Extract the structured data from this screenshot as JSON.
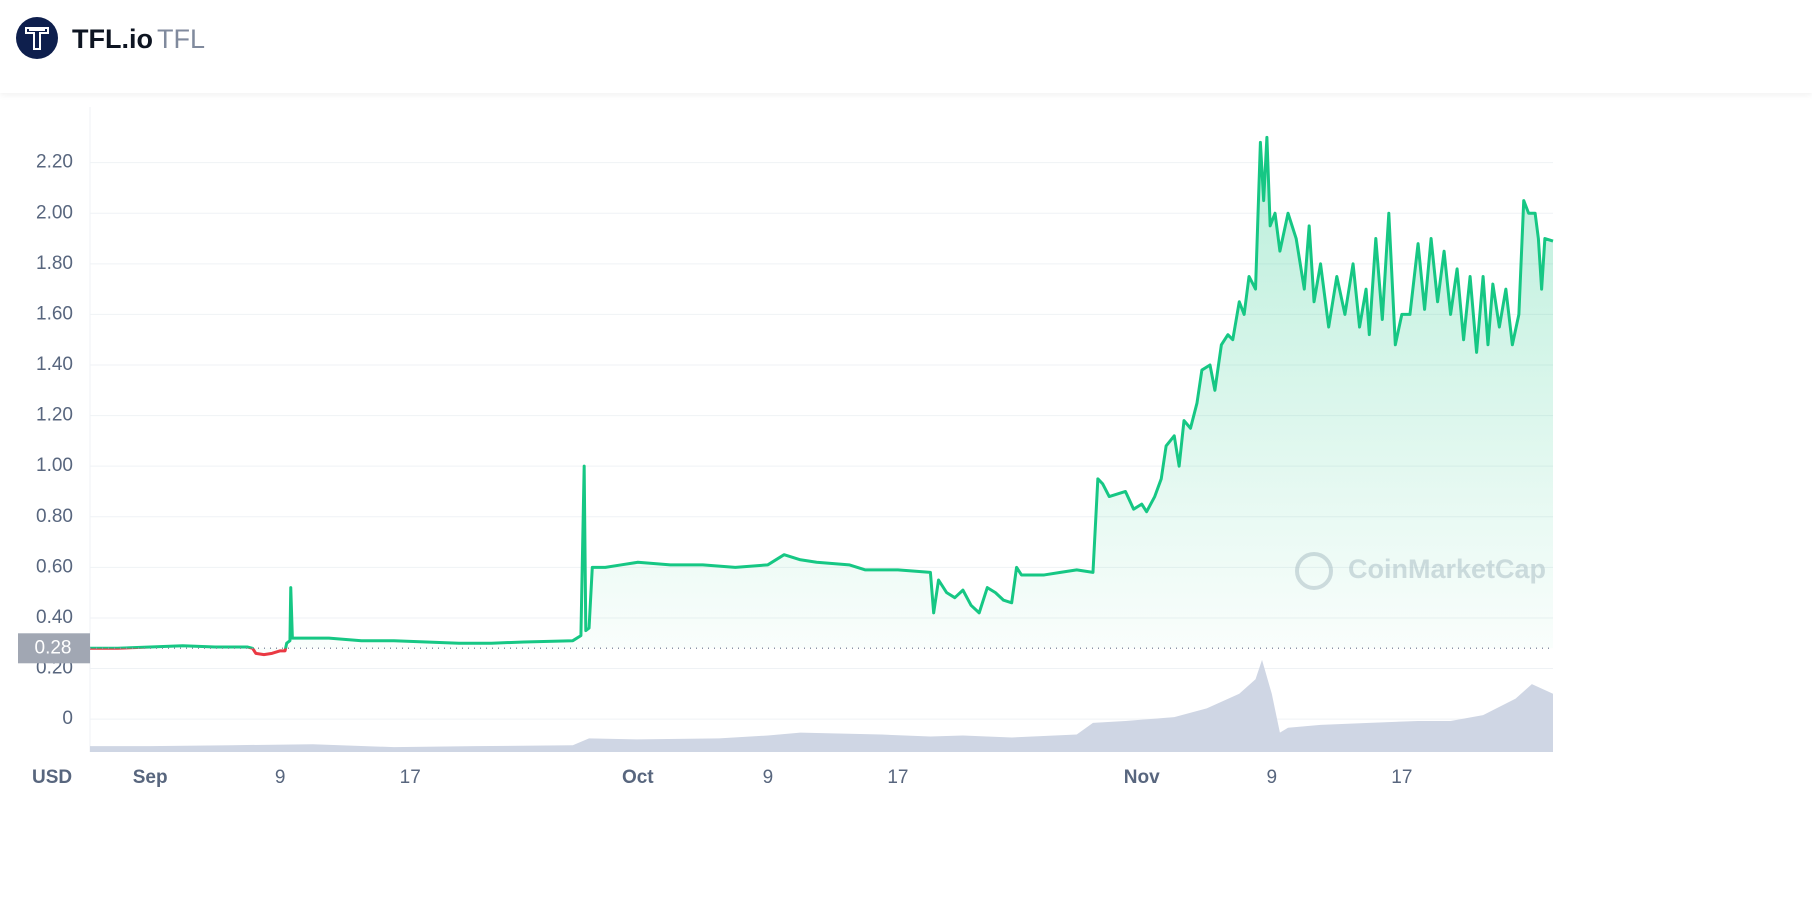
{
  "header": {
    "name": "TFL.io",
    "symbol": "TFL"
  },
  "chart_data": {
    "type": "line",
    "currency": "USD",
    "watermark": "CoinMarketCap",
    "current_price": 0.28,
    "x": [
      -3.7,
      -2,
      0,
      2,
      4,
      6,
      6.3,
      6.5,
      7,
      7.5,
      8,
      8.3,
      8.4,
      8.6,
      8.65,
      8.75,
      9,
      11,
      13,
      15,
      17,
      19,
      21,
      23,
      26,
      26.5,
      26.7,
      26.8,
      27,
      27.2,
      28,
      29,
      30,
      32,
      34,
      36,
      38,
      39,
      40,
      41,
      43,
      44,
      46,
      48,
      48.2,
      48.5,
      49,
      49.5,
      50,
      50.5,
      51,
      51.5,
      52,
      52.5,
      53,
      53.3,
      53.6,
      55,
      56,
      57,
      58,
      58.3,
      58.6,
      59,
      60,
      60.5,
      61,
      61.3,
      61.8,
      62.2,
      62.5,
      63,
      63.3,
      63.6,
      64,
      64.4,
      64.7,
      65.2,
      65.5,
      65.9,
      66.3,
      66.6,
      67,
      67.3,
      67.6,
      68,
      68.3,
      68.5,
      68.7,
      68.9,
      69.2,
      69.5,
      70,
      70.5,
      71,
      71.3,
      71.6,
      72,
      72.5,
      73,
      73.5,
      74,
      74.4,
      74.8,
      75,
      75.4,
      75.8,
      76.2,
      76.6,
      77,
      77.5,
      78,
      78.4,
      78.8,
      79.2,
      79.6,
      80,
      80.4,
      80.8,
      81.2,
      81.6,
      82,
      82.3,
      82.6,
      83,
      83.4,
      83.8,
      84.2,
      84.5,
      84.8,
      85.2,
      85.4,
      85.6,
      85.8,
      86.3
    ],
    "series": [
      {
        "color": "#16c784",
        "down_color": "#ea3943",
        "values": [
          0.28,
          0.28,
          0.285,
          0.29,
          0.285,
          0.285,
          0.28,
          0.26,
          0.255,
          0.26,
          0.27,
          0.27,
          0.3,
          0.31,
          0.52,
          0.32,
          0.32,
          0.32,
          0.31,
          0.31,
          0.305,
          0.3,
          0.3,
          0.305,
          0.31,
          0.33,
          1.0,
          0.35,
          0.36,
          0.6,
          0.6,
          0.61,
          0.62,
          0.61,
          0.61,
          0.6,
          0.61,
          0.65,
          0.63,
          0.62,
          0.61,
          0.59,
          0.59,
          0.58,
          0.42,
          0.55,
          0.5,
          0.48,
          0.51,
          0.45,
          0.42,
          0.52,
          0.5,
          0.47,
          0.46,
          0.6,
          0.57,
          0.57,
          0.58,
          0.59,
          0.58,
          0.95,
          0.93,
          0.88,
          0.9,
          0.83,
          0.85,
          0.82,
          0.88,
          0.95,
          1.08,
          1.12,
          1.0,
          1.18,
          1.15,
          1.25,
          1.38,
          1.4,
          1.3,
          1.48,
          1.52,
          1.5,
          1.65,
          1.6,
          1.75,
          1.7,
          2.28,
          2.05,
          2.3,
          1.95,
          2.0,
          1.85,
          2.0,
          1.9,
          1.7,
          1.95,
          1.65,
          1.8,
          1.55,
          1.75,
          1.6,
          1.8,
          1.55,
          1.7,
          1.52,
          1.9,
          1.58,
          2.0,
          1.48,
          1.6,
          1.6,
          1.88,
          1.62,
          1.9,
          1.65,
          1.85,
          1.6,
          1.78,
          1.5,
          1.75,
          1.45,
          1.75,
          1.48,
          1.72,
          1.55,
          1.7,
          1.48,
          1.6,
          2.05,
          2.0,
          2.0,
          1.9,
          1.7,
          1.9,
          1.89
        ]
      }
    ],
    "volume": {
      "color": "#cfd6e4",
      "y2lim": [
        0,
        100
      ],
      "x": [
        -3.7,
        0,
        5,
        10,
        15,
        20,
        26,
        27,
        30,
        35,
        38,
        40,
        45,
        48,
        50,
        53,
        57,
        58,
        60,
        63,
        65,
        67,
        68,
        68.4,
        69,
        69.5,
        70,
        72,
        75,
        78,
        80,
        82,
        84,
        85,
        86.3
      ],
      "values": [
        6,
        6,
        7,
        8,
        5,
        6,
        7,
        14,
        13,
        14,
        17,
        20,
        18,
        16,
        17,
        15,
        18,
        30,
        32,
        36,
        45,
        60,
        75,
        95,
        60,
        20,
        25,
        28,
        30,
        32,
        32,
        38,
        55,
        70,
        60
      ]
    },
    "xlim": [
      -3.7,
      86.3
    ],
    "xticks": [
      {
        "value": 0,
        "label": "Sep"
      },
      {
        "value": 8,
        "label": "9"
      },
      {
        "value": 16,
        "label": "17"
      },
      {
        "value": 30,
        "label": "Oct"
      },
      {
        "value": 38,
        "label": "9"
      },
      {
        "value": 46,
        "label": "17"
      },
      {
        "value": 61,
        "label": "Nov"
      },
      {
        "value": 69,
        "label": "9"
      },
      {
        "value": 77,
        "label": "17"
      }
    ],
    "ylim": [
      -0.13,
      2.42
    ],
    "yticks": [
      0,
      {
        "value": 0.2,
        "label": "0.20"
      },
      {
        "value": 0.4,
        "label": "0.40"
      },
      {
        "value": 0.6,
        "label": "0.60"
      },
      {
        "value": 0.8,
        "label": "0.80"
      },
      {
        "value": 1.0,
        "label": "1.00"
      },
      {
        "value": 1.2,
        "label": "1.20"
      },
      {
        "value": 1.4,
        "label": "1.40"
      },
      {
        "value": 1.6,
        "label": "1.60"
      },
      {
        "value": 1.8,
        "label": "1.80"
      },
      {
        "value": 2.0,
        "label": "2.00"
      },
      {
        "value": 2.2,
        "label": "2.20"
      }
    ],
    "grid": true
  }
}
